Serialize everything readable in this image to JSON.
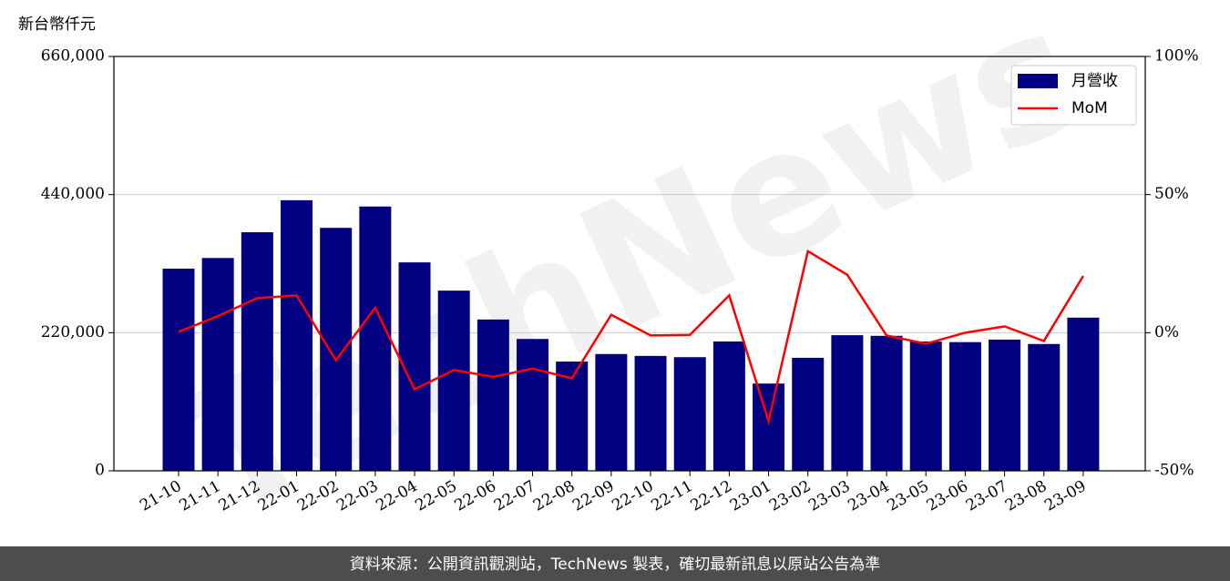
{
  "chart_data": {
    "type": "bar-line",
    "ylabel": "新台幣仟元",
    "watermark": "TechNews",
    "footer": "資料來源：公開資訊觀測站，TechNews 製表，確切最新訊息以原站公告為準",
    "categories": [
      "21-10",
      "21-11",
      "21-12",
      "22-01",
      "22-02",
      "22-03",
      "22-04",
      "22-05",
      "22-06",
      "22-07",
      "22-08",
      "22-09",
      "22-10",
      "22-11",
      "22-12",
      "23-01",
      "23-02",
      "23-03",
      "23-04",
      "23-05",
      "23-06",
      "23-07",
      "23-08",
      "23-09"
    ],
    "series": [
      {
        "name": "月營收",
        "color": "#000080",
        "type": "bar",
        "values": [
          322000,
          339000,
          380000,
          431000,
          387000,
          421000,
          332000,
          287000,
          241000,
          210000,
          174000,
          186000,
          183000,
          181000,
          206000,
          139000,
          180000,
          216000,
          215000,
          206000,
          205000,
          209000,
          202000,
          244000
        ]
      },
      {
        "name": "MoM",
        "color": "#ff0000",
        "type": "line",
        "axis": "y2",
        "values": [
          0.3,
          6,
          12.5,
          13.5,
          -10,
          9,
          -20.5,
          -13.5,
          -16,
          -13,
          -16.5,
          6.5,
          -1,
          -0.8,
          13.5,
          -32,
          29.5,
          21,
          -1,
          -4,
          0,
          2.3,
          -3,
          20.5
        ]
      }
    ],
    "ylim": [
      0,
      660000
    ],
    "yticks": [
      0,
      {
        "value": 220000,
        "label": "220,000"
      },
      {
        "value": 440000,
        "label": "440,000"
      },
      {
        "value": 660000,
        "label": "660,000"
      }
    ],
    "y2lim": [
      -50,
      100
    ],
    "y2ticks": [
      {
        "value": -50,
        "label": "-50%"
      },
      {
        "value": 0,
        "label": "0%"
      },
      {
        "value": 50,
        "label": "50%"
      },
      {
        "value": 100,
        "label": "100%"
      }
    ],
    "grid": true,
    "legend": "upper right"
  }
}
